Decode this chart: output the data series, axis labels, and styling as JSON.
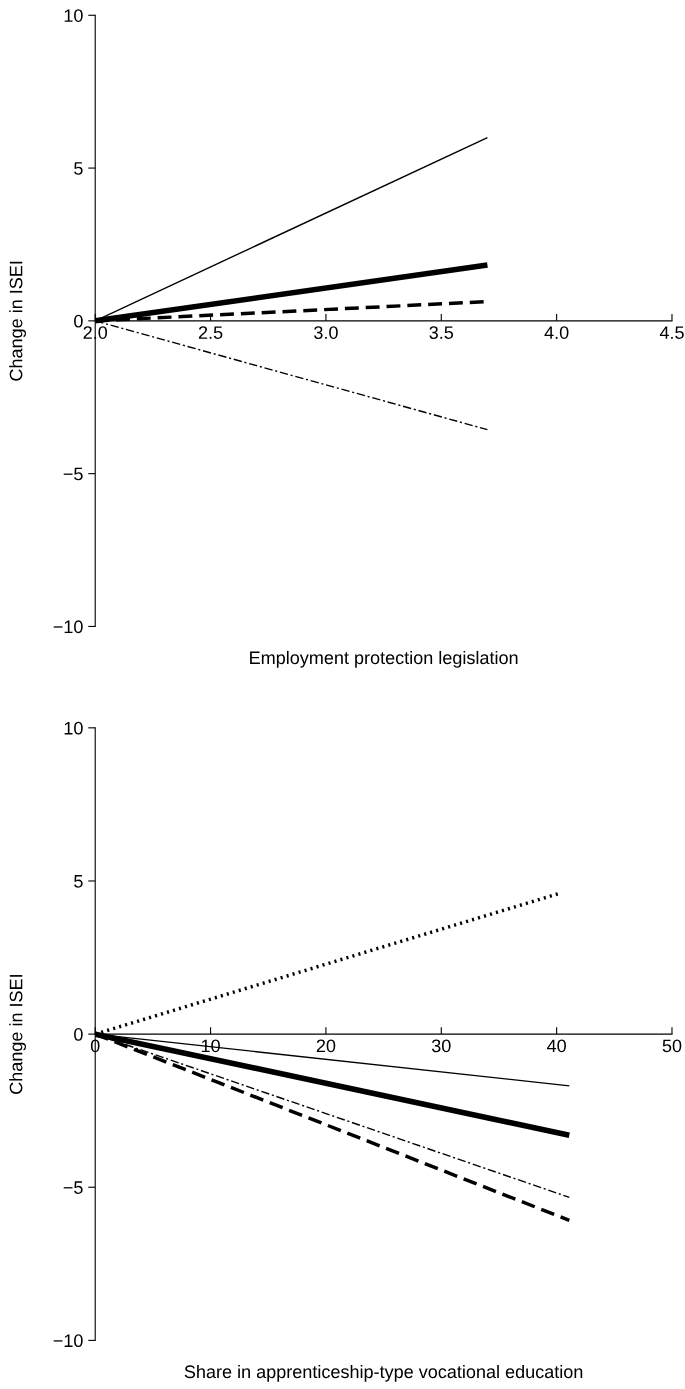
{
  "chart_data": [
    {
      "type": "line",
      "xlabel": "Employment protection legislation",
      "ylabel": "Change in ISEI",
      "xlim": [
        2.0,
        4.5
      ],
      "xticks": [
        {
          "value": 2.0,
          "label": "2.0"
        },
        2.5,
        {
          "value": 3.0,
          "label": "3.0"
        },
        3.5,
        {
          "value": 4.0,
          "label": "4.0"
        },
        4.5
      ],
      "ylim": [
        -10,
        10
      ],
      "yticks": [
        -10,
        -5,
        0,
        5,
        10
      ],
      "grid": false,
      "series": [
        {
          "color": "#000000",
          "line_style": "solid",
          "x": [
            2.0,
            3.7
          ],
          "values": [
            0,
            6.0
          ]
        },
        {
          "color": "#000000",
          "line_style": "solid",
          "x": [
            2.0,
            3.7
          ],
          "values": [
            0,
            1.83
          ]
        },
        {
          "color": "#000000",
          "line_style": "dashed",
          "x": [
            2.0,
            3.7
          ],
          "values": [
            0,
            0.63
          ]
        },
        {
          "color": "#000000",
          "line_style": "dashdot",
          "x": [
            2.0,
            3.7
          ],
          "values": [
            0,
            -3.56
          ]
        }
      ]
    },
    {
      "type": "line",
      "xlabel": "Share in apprenticeship-type vocational education",
      "ylabel": "Change in ISEI",
      "xlim": [
        0,
        50
      ],
      "xticks": [
        0,
        10,
        20,
        30,
        40,
        50
      ],
      "ylim": [
        -10,
        10
      ],
      "yticks": [
        -10,
        -5,
        0,
        5,
        10
      ],
      "grid": false,
      "series": [
        {
          "color": "#000000",
          "line_style": "dotted",
          "x": [
            0,
            40.2
          ],
          "values": [
            0,
            4.59
          ]
        },
        {
          "color": "#000000",
          "line_style": "solid",
          "x": [
            0,
            41.1
          ],
          "values": [
            0,
            -1.69
          ]
        },
        {
          "color": "#000000",
          "line_style": "solid",
          "x": [
            0,
            41.1
          ],
          "values": [
            0,
            -3.3
          ]
        },
        {
          "color": "#000000",
          "line_style": "dashdot",
          "x": [
            0,
            41.1
          ],
          "values": [
            0,
            -5.33
          ]
        },
        {
          "color": "#000000",
          "line_style": "dashed",
          "x": [
            0,
            41.1
          ],
          "values": [
            0,
            -6.08
          ]
        }
      ]
    }
  ]
}
